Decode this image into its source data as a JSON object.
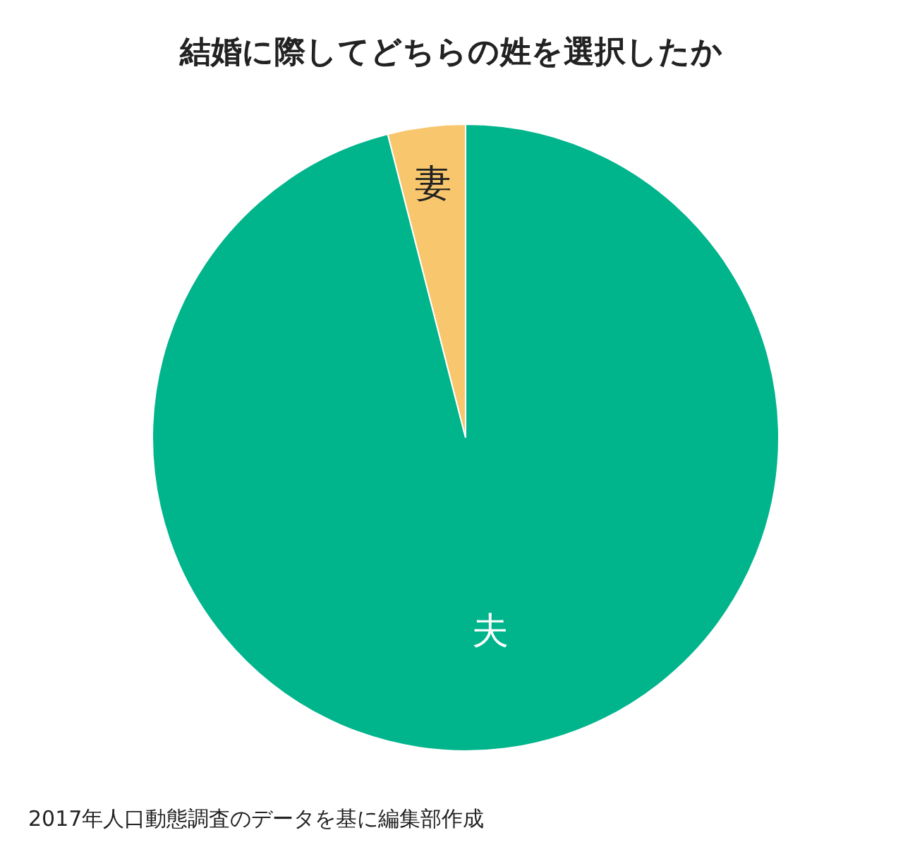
{
  "chart_data": {
    "type": "pie",
    "title": "結婚に際してどちらの姓を選択したか",
    "categories": [
      "夫",
      "妻"
    ],
    "values": [
      96,
      4
    ],
    "colors": [
      "#00b48c",
      "#f8c66c"
    ],
    "annotations": [
      "2017年人口動態調査のデータを基に編集部作成"
    ]
  }
}
